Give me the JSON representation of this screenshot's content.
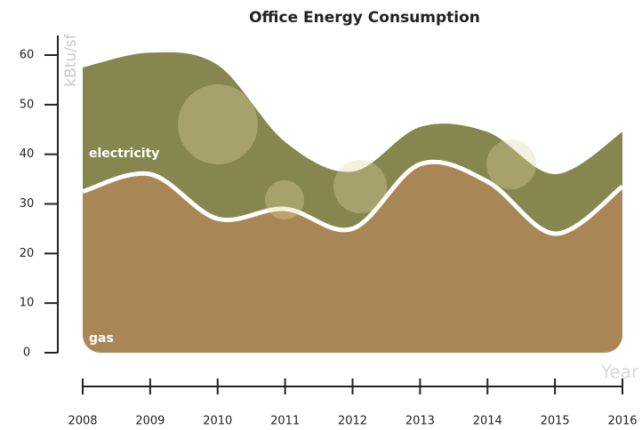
{
  "chart_data": {
    "type": "stacked-area",
    "title": "Office Energy Consumption",
    "y_label": "kBtu/sf",
    "x_label": "Year",
    "categories": [
      "2008",
      "2009",
      "2010",
      "2011",
      "2012",
      "2013",
      "2014",
      "2015",
      "2016"
    ],
    "series": [
      {
        "name": "gas",
        "color": "#a98656",
        "values": [
          32.5,
          36,
          27,
          29,
          25,
          38,
          34.5,
          24,
          33.5
        ]
      },
      {
        "name": "electricity",
        "color": "#86864f",
        "values": [
          25,
          24.5,
          31,
          13.5,
          11.5,
          7.5,
          10,
          12,
          11
        ]
      }
    ],
    "ylim": [
      0,
      60
    ],
    "yticks": [
      0,
      10,
      20,
      30,
      40,
      50,
      60
    ]
  }
}
